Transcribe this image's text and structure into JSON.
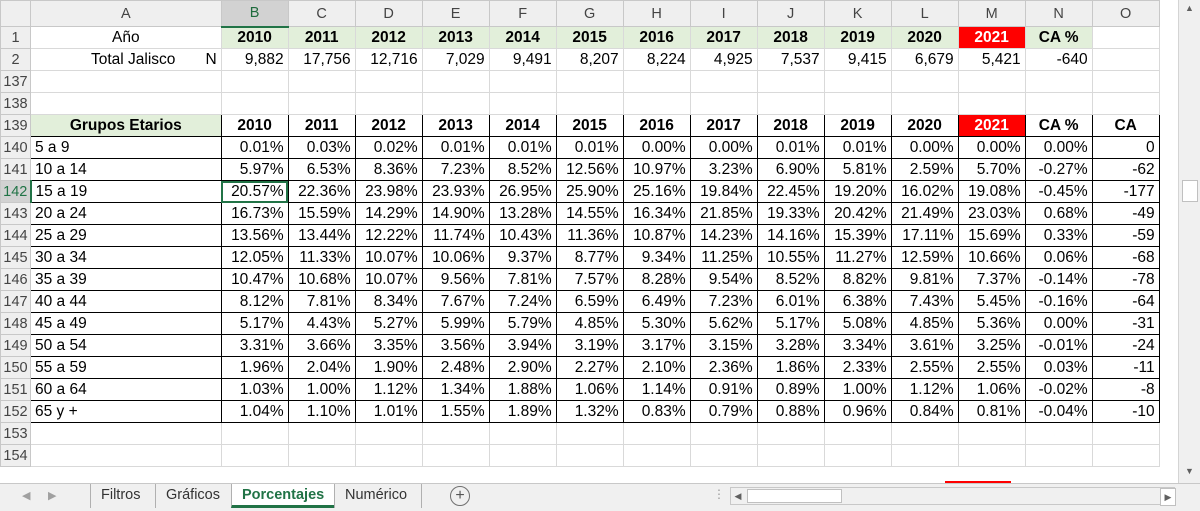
{
  "colors": {
    "year_header": "#e2efda",
    "highlight": "#ff0000",
    "accent": "#217346"
  },
  "columns": [
    "A",
    "B",
    "C",
    "D",
    "E",
    "F",
    "G",
    "H",
    "I",
    "J",
    "K",
    "L",
    "M",
    "N",
    "O"
  ],
  "selected_column": "B",
  "selected_row": "142",
  "row1": {
    "rownum": "1",
    "label": "Año",
    "years": [
      "2010",
      "2011",
      "2012",
      "2013",
      "2014",
      "2015",
      "2016",
      "2017",
      "2018",
      "2019",
      "2020",
      "2021"
    ],
    "ca_pct": "CA %"
  },
  "row2": {
    "rownum": "2",
    "label": "Total Jalisco",
    "label_suffix": "N",
    "values": [
      "9,882",
      "17,756",
      "12,716",
      "7,029",
      "9,491",
      "8,207",
      "8,224",
      "4,925",
      "7,537",
      "9,415",
      "6,679",
      "5,421"
    ],
    "ca": "-640"
  },
  "blank_rows_top": [
    "137",
    "138"
  ],
  "header139": {
    "rownum": "139",
    "label": "Grupos Etarios",
    "years": [
      "2010",
      "2011",
      "2012",
      "2013",
      "2014",
      "2015",
      "2016",
      "2017",
      "2018",
      "2019",
      "2020",
      "2021"
    ],
    "ca_pct": "CA %",
    "ca": "CA"
  },
  "groups": [
    {
      "rownum": "140",
      "label": "5 a 9",
      "values": [
        "0.01%",
        "0.03%",
        "0.02%",
        "0.01%",
        "0.01%",
        "0.01%",
        "0.00%",
        "0.00%",
        "0.01%",
        "0.01%",
        "0.00%",
        "0.00%"
      ],
      "ca_pct": "0.00%",
      "ca": "0"
    },
    {
      "rownum": "141",
      "label": "10 a 14",
      "values": [
        "5.97%",
        "6.53%",
        "8.36%",
        "7.23%",
        "8.52%",
        "12.56%",
        "10.97%",
        "3.23%",
        "6.90%",
        "5.81%",
        "2.59%",
        "5.70%"
      ],
      "ca_pct": "-0.27%",
      "ca": "-62"
    },
    {
      "rownum": "142",
      "label": "15 a 19",
      "values": [
        "20.57%",
        "22.36%",
        "23.98%",
        "23.93%",
        "26.95%",
        "25.90%",
        "25.16%",
        "19.84%",
        "22.45%",
        "19.20%",
        "16.02%",
        "19.08%"
      ],
      "ca_pct": "-0.45%",
      "ca": "-177"
    },
    {
      "rownum": "143",
      "label": "20 a 24",
      "values": [
        "16.73%",
        "15.59%",
        "14.29%",
        "14.90%",
        "13.28%",
        "14.55%",
        "16.34%",
        "21.85%",
        "19.33%",
        "20.42%",
        "21.49%",
        "23.03%"
      ],
      "ca_pct": "0.68%",
      "ca": "-49"
    },
    {
      "rownum": "144",
      "label": "25 a 29",
      "values": [
        "13.56%",
        "13.44%",
        "12.22%",
        "11.74%",
        "10.43%",
        "11.36%",
        "10.87%",
        "14.23%",
        "14.16%",
        "15.39%",
        "17.11%",
        "15.69%"
      ],
      "ca_pct": "0.33%",
      "ca": "-59"
    },
    {
      "rownum": "145",
      "label": "30 a 34",
      "values": [
        "12.05%",
        "11.33%",
        "10.07%",
        "10.06%",
        "9.37%",
        "8.77%",
        "9.34%",
        "11.25%",
        "10.55%",
        "11.27%",
        "12.59%",
        "10.66%"
      ],
      "ca_pct": "0.06%",
      "ca": "-68"
    },
    {
      "rownum": "146",
      "label": "35 a 39",
      "values": [
        "10.47%",
        "10.68%",
        "10.07%",
        "9.56%",
        "7.81%",
        "7.57%",
        "8.28%",
        "9.54%",
        "8.52%",
        "8.82%",
        "9.81%",
        "7.37%"
      ],
      "ca_pct": "-0.14%",
      "ca": "-78"
    },
    {
      "rownum": "147",
      "label": "40 a 44",
      "values": [
        "8.12%",
        "7.81%",
        "8.34%",
        "7.67%",
        "7.24%",
        "6.59%",
        "6.49%",
        "7.23%",
        "6.01%",
        "6.38%",
        "7.43%",
        "5.45%"
      ],
      "ca_pct": "-0.16%",
      "ca": "-64"
    },
    {
      "rownum": "148",
      "label": "45 a 49",
      "values": [
        "5.17%",
        "4.43%",
        "5.27%",
        "5.99%",
        "5.79%",
        "4.85%",
        "5.30%",
        "5.62%",
        "5.17%",
        "5.08%",
        "4.85%",
        "5.36%"
      ],
      "ca_pct": "0.00%",
      "ca": "-31"
    },
    {
      "rownum": "149",
      "label": "50 a 54",
      "values": [
        "3.31%",
        "3.66%",
        "3.35%",
        "3.56%",
        "3.94%",
        "3.19%",
        "3.17%",
        "3.15%",
        "3.28%",
        "3.34%",
        "3.61%",
        "3.25%"
      ],
      "ca_pct": "-0.01%",
      "ca": "-24"
    },
    {
      "rownum": "150",
      "label": "55 a 59",
      "values": [
        "1.96%",
        "2.04%",
        "1.90%",
        "2.48%",
        "2.90%",
        "2.27%",
        "2.10%",
        "2.36%",
        "1.86%",
        "2.33%",
        "2.55%",
        "2.55%"
      ],
      "ca_pct": "0.03%",
      "ca": "-11"
    },
    {
      "rownum": "151",
      "label": "60 a 64",
      "values": [
        "1.03%",
        "1.00%",
        "1.12%",
        "1.34%",
        "1.88%",
        "1.06%",
        "1.14%",
        "0.91%",
        "0.89%",
        "1.00%",
        "1.12%",
        "1.06%"
      ],
      "ca_pct": "-0.02%",
      "ca": "-8"
    },
    {
      "rownum": "152",
      "label": "65 y +",
      "values": [
        "1.04%",
        "1.10%",
        "1.01%",
        "1.55%",
        "1.89%",
        "1.32%",
        "0.83%",
        "0.79%",
        "0.88%",
        "0.96%",
        "0.84%",
        "0.81%"
      ],
      "ca_pct": "-0.04%",
      "ca": "-10"
    }
  ],
  "blank_rows_bottom": [
    "153",
    "154"
  ],
  "tabs": [
    {
      "label": "Filtros",
      "active": false
    },
    {
      "label": "Gráficos",
      "active": false
    },
    {
      "label": "Porcentajes",
      "active": true
    },
    {
      "label": "Numérico",
      "active": false
    }
  ],
  "icons": {
    "add_sheet": "plus-circle-icon",
    "tab_prev": "triangle-left-icon",
    "tab_next": "triangle-right-icon"
  }
}
